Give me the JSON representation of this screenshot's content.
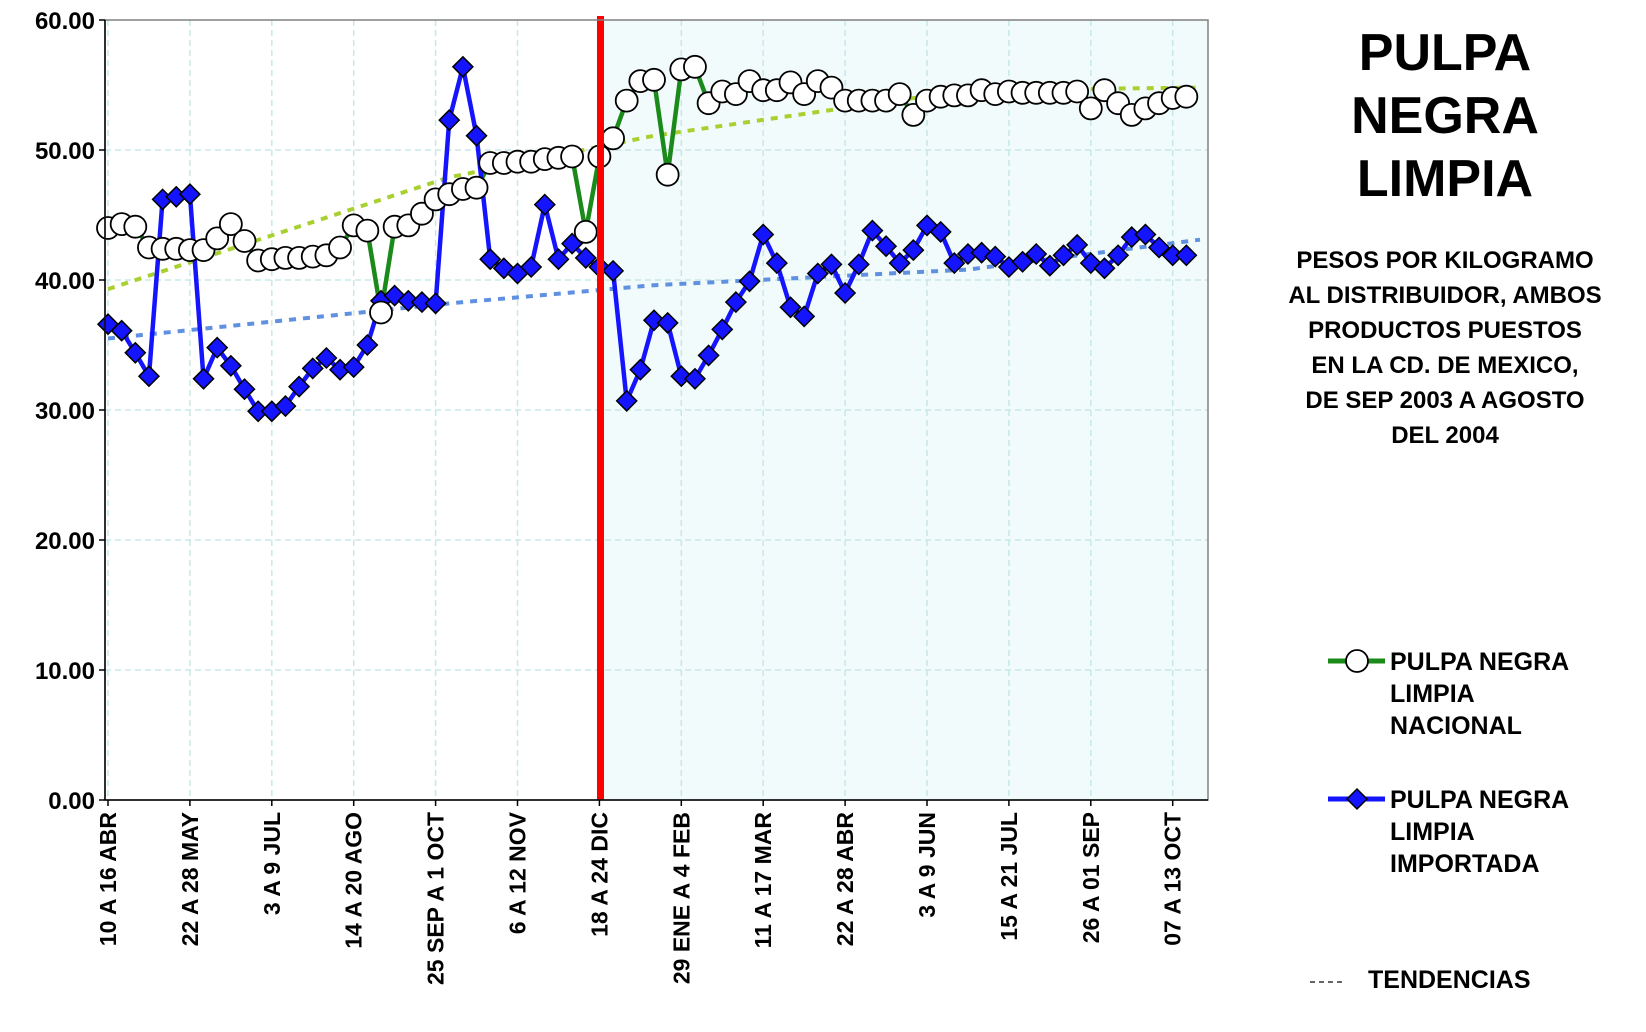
{
  "title": [
    "PULPA",
    "NEGRA",
    "LIMPIA"
  ],
  "subtitle": [
    "PESOS POR KILOGRAMO",
    "AL DISTRIBUIDOR, AMBOS",
    "PRODUCTOS PUESTOS",
    "EN LA CD. DE MEXICO,",
    "DE SEP 2003 A AGOSTO",
    "DEL 2004"
  ],
  "legend": {
    "nacional": [
      "PULPA NEGRA",
      "LIMPIA",
      "NACIONAL"
    ],
    "importada": [
      "PULPA NEGRA",
      "LIMPIA",
      "IMPORTADA"
    ],
    "tendencias": "TENDENCIAS"
  },
  "colors": {
    "nacional_line": "#1a8a1a",
    "importada_line": "#1414ff",
    "nacional_trend": "#a8d030",
    "importada_trend": "#6090e0",
    "divider": "#ff0000",
    "plot_border": "#808080",
    "grid": "#c8e8e8",
    "right_bg": "#f2fbfb"
  },
  "chart_data": {
    "type": "line",
    "ylim": [
      0,
      60
    ],
    "yticks": [
      "0.00",
      "10.00",
      "20.00",
      "30.00",
      "40.00",
      "50.00",
      "60.00"
    ],
    "n_points": 80,
    "x_ticks": [
      {
        "index": 0,
        "label": "10 A 16  ABR"
      },
      {
        "index": 6,
        "label": "22 A 28 MAY"
      },
      {
        "index": 12,
        "label": "3  A  9     JUL"
      },
      {
        "index": 18,
        "label": "14  A 20     AGO"
      },
      {
        "index": 24,
        "label": "25 SEP A 1 OCT"
      },
      {
        "index": 30,
        "label": "6 A 12 NOV"
      },
      {
        "index": 36,
        "label": "18 A 24 DIC"
      },
      {
        "index": 42,
        "label": "29 ENE A 4 FEB"
      },
      {
        "index": 48,
        "label": "11 A 17 MAR"
      },
      {
        "index": 54,
        "label": "22 A 28 ABR"
      },
      {
        "index": 60,
        "label": "3 A 9 JUN"
      },
      {
        "index": 66,
        "label": "15 A 21  JUL"
      },
      {
        "index": 72,
        "label": "26 A 01 SEP"
      },
      {
        "index": 78,
        "label": "07 A 13 OCT"
      }
    ],
    "divider_index": 36.08,
    "series": [
      {
        "name": "PULPA NEGRA LIMPIA NACIONAL",
        "marker": "circle",
        "values": [
          44.0,
          44.3,
          44.1,
          42.5,
          42.4,
          42.4,
          42.3,
          42.3,
          43.2,
          44.3,
          43.0,
          41.5,
          41.6,
          41.7,
          41.7,
          41.8,
          41.9,
          42.5,
          44.2,
          43.8,
          37.5,
          44.1,
          44.2,
          45.1,
          46.2,
          46.6,
          47.0,
          47.1,
          49.0,
          49.0,
          49.1,
          49.1,
          49.3,
          49.4,
          49.5,
          43.7,
          49.5,
          50.9,
          53.8,
          55.3,
          55.4,
          48.1,
          56.2,
          56.4,
          53.6,
          54.5,
          54.3,
          55.3,
          54.6,
          54.6,
          55.2,
          54.3,
          55.3,
          54.8,
          53.8,
          53.8,
          53.8,
          53.8,
          54.3,
          52.7,
          53.8,
          54.1,
          54.2,
          54.2,
          54.6,
          54.3,
          54.5,
          54.4,
          54.4,
          54.4,
          54.4,
          54.5,
          53.2,
          54.6,
          53.6,
          52.7,
          53.2,
          53.6,
          54.0,
          54.1
        ]
      },
      {
        "name": "PULPA NEGRA LIMPIA IMPORTADA",
        "marker": "diamond",
        "values": [
          36.6,
          36.1,
          34.4,
          32.6,
          46.2,
          46.4,
          46.6,
          32.4,
          34.8,
          33.4,
          31.6,
          29.9,
          29.9,
          30.3,
          31.8,
          33.2,
          34.0,
          33.1,
          33.3,
          35.0,
          38.4,
          38.8,
          38.4,
          38.3,
          38.2,
          52.3,
          56.4,
          51.1,
          41.6,
          40.9,
          40.5,
          41.0,
          45.8,
          41.6,
          42.8,
          41.7,
          41.0,
          40.7,
          30.7,
          33.1,
          36.9,
          36.7,
          32.6,
          32.4,
          34.2,
          36.2,
          38.3,
          39.9,
          43.5,
          41.3,
          37.9,
          37.2,
          40.5,
          41.2,
          39.0,
          41.2,
          43.8,
          42.6,
          41.3,
          42.3,
          44.2,
          43.7,
          41.3,
          42.0,
          42.1,
          41.8,
          41.0,
          41.4,
          42.0,
          41.1,
          41.9,
          42.7,
          41.3,
          40.9,
          41.9,
          43.3,
          43.5,
          42.5,
          41.9,
          41.9
        ]
      }
    ],
    "trends": [
      {
        "series": "PULPA NEGRA LIMPIA NACIONAL",
        "style": "dashed",
        "values": [
          39.3,
          47.9,
          51.1,
          54.6,
          54.8
        ]
      },
      {
        "series": "PULPA NEGRA LIMPIA IMPORTADA",
        "style": "dashed",
        "values": [
          35.5,
          38.2,
          39.6,
          40.8,
          43.1
        ]
      }
    ],
    "trend_indices": [
      0,
      25,
      40,
      63,
      80
    ],
    "grid": true,
    "legend_position": "right"
  }
}
